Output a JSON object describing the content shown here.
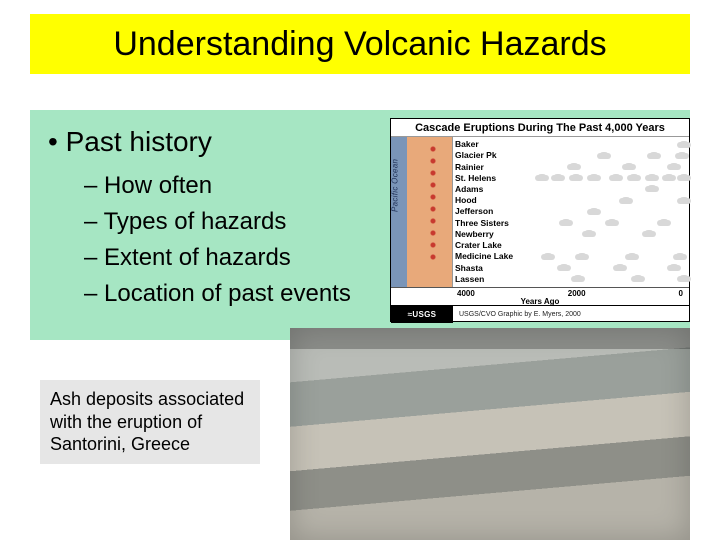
{
  "title": "Understanding Volcanic Hazards",
  "bullets": {
    "lvl1": "Past history",
    "lvl2": [
      "How often",
      "Types of hazards",
      "Extent of hazards",
      "Location of past events"
    ]
  },
  "caption": "Ash deposits associated with the eruption of Santorini, Greece",
  "usgs_chart": {
    "title": "Cascade Eruptions During The Past 4,000 Years",
    "map_label": "Pacific Ocean",
    "volcano_labels": [
      "Baker",
      "Glacier Pk",
      "Rainier",
      "St. Helens",
      "Adams",
      "Hood",
      "Jefferson",
      "Three Sisters",
      "Newberry",
      "Crater Lake",
      "Medicine Lake",
      "Shasta",
      "Lassen"
    ],
    "eruption_positions": [
      [
        150
      ],
      [
        148,
        120,
        70
      ],
      [
        140,
        95,
        40
      ],
      [
        150,
        135,
        118,
        100,
        82,
        60,
        42,
        24,
        8
      ],
      [
        118
      ],
      [
        150,
        92
      ],
      [
        60
      ],
      [
        130,
        78,
        32
      ],
      [
        115,
        55
      ],
      [],
      [
        146,
        98,
        48,
        14
      ],
      [
        140,
        86,
        30
      ],
      [
        150,
        104,
        44
      ]
    ],
    "x_ticks": [
      "4000",
      "2000",
      "0"
    ],
    "x_label": "Years Ago",
    "logo_text": "≈USGS",
    "credit": "USGS/CVO Graphic by E. Myers, 2000"
  },
  "colors": {
    "title_bg": "#ffff00",
    "body_bg": "#a6e6c3",
    "caption_bg": "#e6e6e6",
    "ocean": "#7a95b8",
    "land": "#e8a97a",
    "volcano_marker": "#c83a2f",
    "cloud": "#d8d8d8",
    "usgs_logo_bg": "#000000"
  }
}
